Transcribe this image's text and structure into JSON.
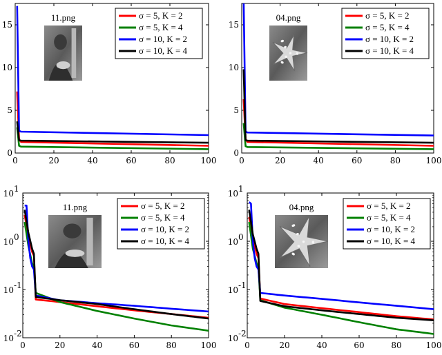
{
  "chart_data": [
    {
      "type": "line",
      "title": "11.png",
      "image_caption": "11.png",
      "yscale": "linear",
      "xlim": [
        0,
        100
      ],
      "ylim": [
        0,
        17.5
      ],
      "xticks": [
        0,
        20,
        40,
        60,
        80,
        100
      ],
      "yticks": [
        0,
        5,
        10,
        15
      ],
      "legend": "top-right",
      "series": [
        {
          "name": "σ = 5, K = 2",
          "color": "#ff0000",
          "x": [
            1,
            2,
            3,
            100
          ],
          "y": [
            7.2,
            1.6,
            1.3,
            0.85
          ]
        },
        {
          "name": "σ = 5, K = 4",
          "color": "#008000",
          "x": [
            1,
            2,
            3,
            100
          ],
          "y": [
            3.0,
            0.85,
            0.75,
            0.45
          ]
        },
        {
          "name": "σ = 10, K = 2",
          "color": "#0000ff",
          "x": [
            1,
            2,
            3,
            100
          ],
          "y": [
            17.2,
            2.6,
            2.5,
            2.1
          ]
        },
        {
          "name": "σ = 10, K = 4",
          "color": "#000000",
          "x": [
            1,
            2,
            3,
            100
          ],
          "y": [
            3.7,
            1.5,
            1.45,
            1.2
          ]
        }
      ]
    },
    {
      "type": "line",
      "title": "04.png",
      "image_caption": "04.png",
      "yscale": "linear",
      "xlim": [
        0,
        100
      ],
      "ylim": [
        0,
        17.5
      ],
      "xticks": [
        0,
        20,
        40,
        60,
        80,
        100
      ],
      "yticks": [
        0,
        5,
        10,
        15
      ],
      "legend": "top-right",
      "series": [
        {
          "name": "σ = 5, K = 2",
          "color": "#ff0000",
          "x": [
            1,
            2,
            3,
            100
          ],
          "y": [
            6.3,
            1.6,
            1.3,
            0.85
          ]
        },
        {
          "name": "σ = 5, K = 4",
          "color": "#008000",
          "x": [
            1,
            2,
            3,
            100
          ],
          "y": [
            3.5,
            0.8,
            0.7,
            0.45
          ]
        },
        {
          "name": "σ = 10, K = 2",
          "color": "#0000ff",
          "x": [
            1,
            2,
            3,
            100
          ],
          "y": [
            17.8,
            2.5,
            2.4,
            2.05
          ]
        },
        {
          "name": "σ = 10, K = 4",
          "color": "#000000",
          "x": [
            1,
            2,
            3,
            100
          ],
          "y": [
            9.8,
            1.5,
            1.45,
            1.2
          ]
        }
      ]
    },
    {
      "type": "line",
      "title": "11.png",
      "image_caption": "11.png",
      "yscale": "log",
      "xlim": [
        0,
        100
      ],
      "ylim": [
        0.01,
        10
      ],
      "xticks": [
        0,
        20,
        40,
        60,
        80,
        100
      ],
      "yticks": [
        0.01,
        0.1,
        1,
        10
      ],
      "ytick_labels": [
        {
          "base": "10",
          "exp": "-2"
        },
        {
          "base": "10",
          "exp": "-1"
        },
        {
          "base": "10",
          "exp": "0"
        },
        {
          "base": "10",
          "exp": "1"
        }
      ],
      "legend": "top-right",
      "series": [
        {
          "name": "σ = 5, K = 2",
          "color": "#ff0000",
          "x": [
            1,
            3,
            5,
            6,
            7,
            20,
            40,
            60,
            80,
            100
          ],
          "y": [
            3.5,
            1.3,
            0.6,
            0.5,
            0.062,
            0.055,
            0.045,
            0.037,
            0.031,
            0.026
          ]
        },
        {
          "name": "σ = 5, K = 4",
          "color": "#008000",
          "x": [
            1,
            3,
            5,
            6,
            7,
            20,
            40,
            60,
            80,
            100
          ],
          "y": [
            2.5,
            0.8,
            0.35,
            0.3,
            0.085,
            0.055,
            0.036,
            0.025,
            0.018,
            0.014
          ]
        },
        {
          "name": "σ = 10, K = 2",
          "color": "#0000ff",
          "x": [
            1,
            2,
            3,
            4,
            5,
            6,
            7,
            20,
            40,
            60,
            80,
            100
          ],
          "y": [
            5.5,
            5.5,
            1.0,
            0.45,
            0.3,
            0.26,
            0.075,
            0.06,
            0.052,
            0.046,
            0.04,
            0.035
          ]
        },
        {
          "name": "σ = 10, K = 4",
          "color": "#000000",
          "x": [
            1,
            3,
            5,
            6,
            7,
            20,
            40,
            60,
            80,
            100
          ],
          "y": [
            4.5,
            1.5,
            0.7,
            0.55,
            0.07,
            0.06,
            0.05,
            0.039,
            0.031,
            0.025
          ]
        }
      ]
    },
    {
      "type": "line",
      "title": "04.png",
      "image_caption": "04.png",
      "yscale": "log",
      "xlim": [
        0,
        100
      ],
      "ylim": [
        0.01,
        10
      ],
      "xticks": [
        0,
        20,
        40,
        60,
        80,
        100
      ],
      "yticks": [
        0.01,
        0.1,
        1,
        10
      ],
      "ytick_labels": [
        {
          "base": "10",
          "exp": "-2"
        },
        {
          "base": "10",
          "exp": "-1"
        },
        {
          "base": "10",
          "exp": "0"
        },
        {
          "base": "10",
          "exp": "1"
        }
      ],
      "legend": "top-right",
      "series": [
        {
          "name": "σ = 5, K = 2",
          "color": "#ff0000",
          "x": [
            1,
            3,
            5,
            6,
            7,
            20,
            40,
            60,
            80,
            100
          ],
          "y": [
            3.2,
            1.2,
            0.55,
            0.45,
            0.065,
            0.05,
            0.041,
            0.034,
            0.028,
            0.024
          ]
        },
        {
          "name": "σ = 5, K = 4",
          "color": "#008000",
          "x": [
            1,
            3,
            5,
            6,
            7,
            20,
            40,
            60,
            80,
            100
          ],
          "y": [
            2.5,
            0.7,
            0.35,
            0.3,
            0.06,
            0.042,
            0.03,
            0.021,
            0.015,
            0.012
          ]
        },
        {
          "name": "σ = 10, K = 2",
          "color": "#0000ff",
          "x": [
            1,
            2,
            3,
            4,
            5,
            6,
            7,
            20,
            40,
            60,
            80,
            100
          ],
          "y": [
            6.5,
            6.0,
            1.0,
            0.45,
            0.3,
            0.26,
            0.085,
            0.075,
            0.064,
            0.054,
            0.046,
            0.039
          ]
        },
        {
          "name": "σ = 10, K = 4",
          "color": "#000000",
          "x": [
            1,
            3,
            5,
            6,
            7,
            20,
            40,
            60,
            80,
            100
          ],
          "y": [
            4.5,
            1.4,
            0.7,
            0.55,
            0.058,
            0.045,
            0.037,
            0.031,
            0.026,
            0.023
          ]
        }
      ]
    }
  ]
}
